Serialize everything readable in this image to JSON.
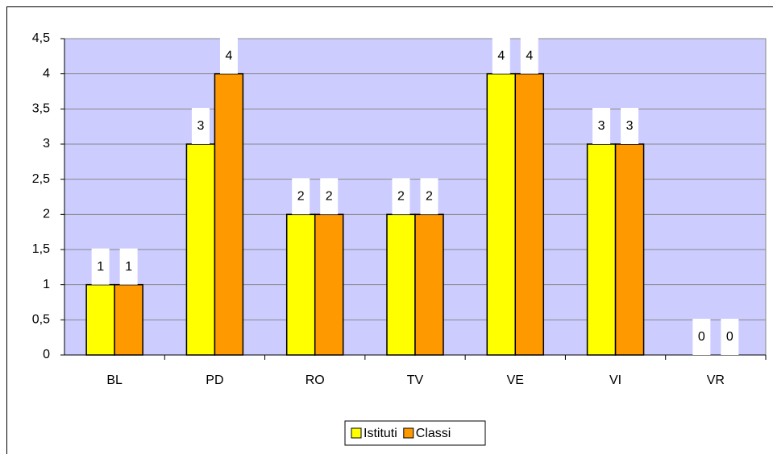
{
  "chart_data": {
    "type": "bar",
    "categories": [
      "BL",
      "PD",
      "RO",
      "TV",
      "VE",
      "VI",
      "VR"
    ],
    "series": [
      {
        "name": "Istituti",
        "color": "#ffff00",
        "values": [
          1,
          3,
          2,
          2,
          4,
          3,
          0
        ]
      },
      {
        "name": "Classi",
        "color": "#ff9900",
        "values": [
          1,
          4,
          2,
          2,
          4,
          3,
          0
        ]
      }
    ],
    "ylim": [
      0,
      4.5
    ],
    "yticks": [
      0,
      {
        "value": 0.5,
        "label": "0,5"
      },
      1,
      {
        "value": 1.5,
        "label": "1,5"
      },
      2,
      {
        "value": 2.5,
        "label": "2,5"
      },
      3,
      {
        "value": 3.5,
        "label": "3,5"
      },
      4,
      {
        "value": 4.5,
        "label": "4,5"
      }
    ],
    "grid": true,
    "legend": "bottom"
  }
}
